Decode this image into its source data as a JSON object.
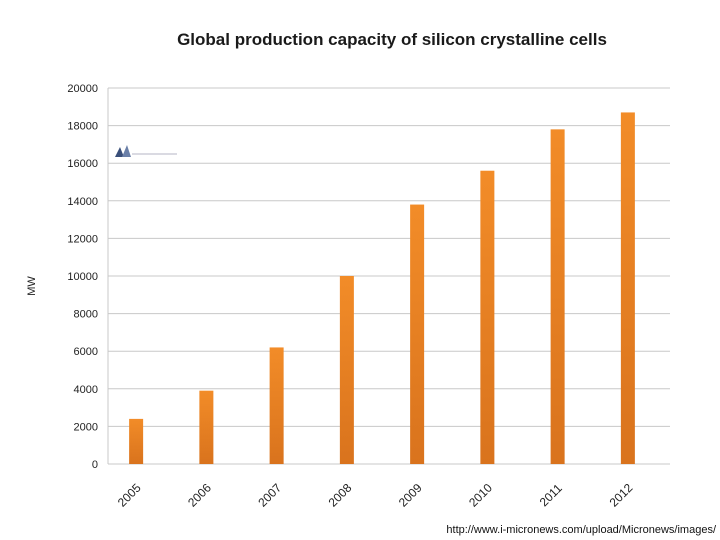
{
  "chart_data": {
    "type": "bar",
    "title": "Global production capacity of silicon crystalline cells",
    "xlabel": "",
    "ylabel": "MW",
    "categories": [
      "2005",
      "2006",
      "2007",
      "2008",
      "2009",
      "2010",
      "2011",
      "2012"
    ],
    "values": [
      2400,
      3900,
      6200,
      10000,
      13800,
      15600,
      17800,
      18700
    ],
    "ylim": [
      0,
      20000
    ],
    "yticks": [
      0,
      2000,
      4000,
      6000,
      8000,
      10000,
      12000,
      14000,
      16000,
      18000,
      20000
    ],
    "grid": true,
    "bar_color": "#f28c28",
    "bar_color_dark": "#d9731d"
  },
  "source": {
    "url": "http://www.i-micronews.com/upload/Micronews/images/"
  }
}
